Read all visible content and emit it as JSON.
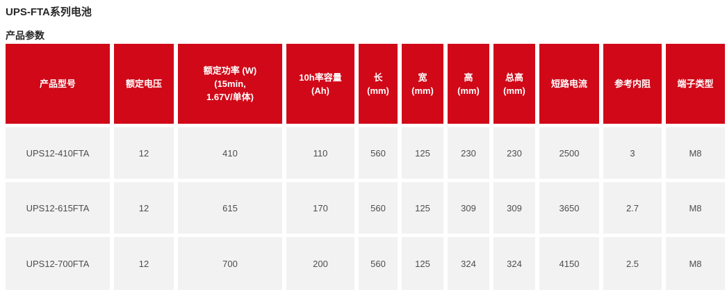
{
  "page": {
    "title": "UPS-FTA系列电池",
    "section_title": "产品参数"
  },
  "colors": {
    "header_bg": "#d00818",
    "header_text": "#ffffff",
    "row_bg": "#f2f2f2",
    "body_text": "#4d4d4d",
    "title_text": "#262626"
  },
  "table": {
    "headers": [
      [
        "产品型号"
      ],
      [
        "额定电压"
      ],
      [
        "额定功率 (W)",
        "(15min,",
        "1.67V/单体)"
      ],
      [
        "10h率容量",
        "(Ah)"
      ],
      [
        "长",
        "(mm)"
      ],
      [
        "宽",
        "(mm)"
      ],
      [
        "高",
        "(mm)"
      ],
      [
        "总高",
        "(mm)"
      ],
      [
        "短路电流"
      ],
      [
        "参考内阻"
      ],
      [
        "端子类型"
      ]
    ],
    "rows": [
      [
        "UPS12-410FTA",
        "12",
        "410",
        "110",
        "560",
        "125",
        "230",
        "230",
        "2500",
        "3",
        "M8"
      ],
      [
        "UPS12-615FTA",
        "12",
        "615",
        "170",
        "560",
        "125",
        "309",
        "309",
        "3650",
        "2.7",
        "M8"
      ],
      [
        "UPS12-700FTA",
        "12",
        "700",
        "200",
        "560",
        "125",
        "324",
        "324",
        "4150",
        "2.5",
        "M8"
      ]
    ]
  }
}
